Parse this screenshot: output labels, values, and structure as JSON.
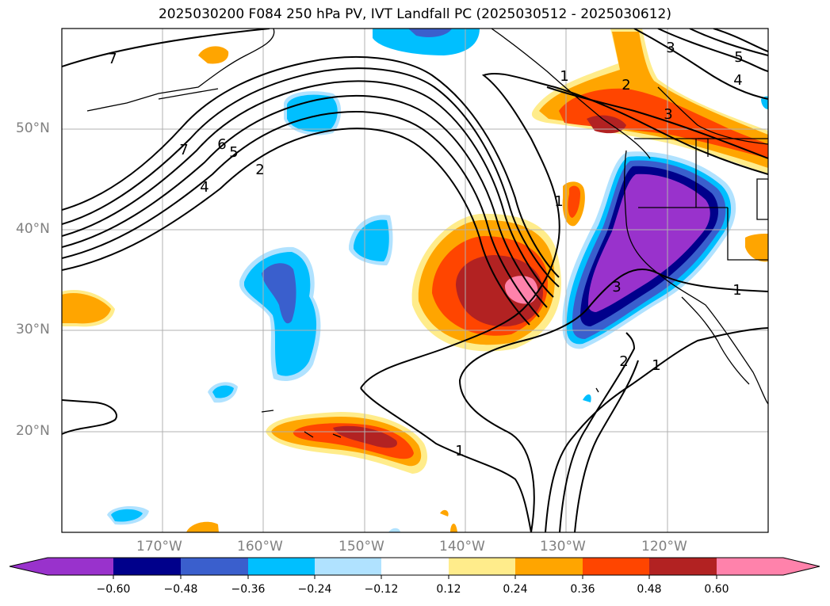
{
  "title": "2025030200 F084 250 hPa PV, IVT Landfall PC (2025030512 - 2025030612)",
  "lat_labels": [
    "50°N",
    "40°N",
    "30°N",
    "20°N"
  ],
  "lon_labels": [
    "170°W",
    "160°W",
    "150°W",
    "140°W",
    "130°W",
    "120°W"
  ],
  "colorbar": {
    "ticks": [
      "−0.60",
      "−0.48",
      "−0.36",
      "−0.24",
      "−0.12",
      "0.12",
      "0.24",
      "0.36",
      "0.48",
      "0.60"
    ],
    "colors": [
      "#9932cc",
      "#00008b",
      "#3a5fcd",
      "#00bfff",
      "#b0e2ff",
      "#ffffff",
      "#ffec8b",
      "#ffa500",
      "#ff4500",
      "#b22222",
      "#ff82ab"
    ]
  },
  "contour_labels": [
    "7",
    "7",
    "6",
    "5",
    "4",
    "2",
    "1",
    "1",
    "2",
    "3",
    "3",
    "4",
    "5",
    "1",
    "2",
    "1",
    "1",
    "3"
  ]
}
